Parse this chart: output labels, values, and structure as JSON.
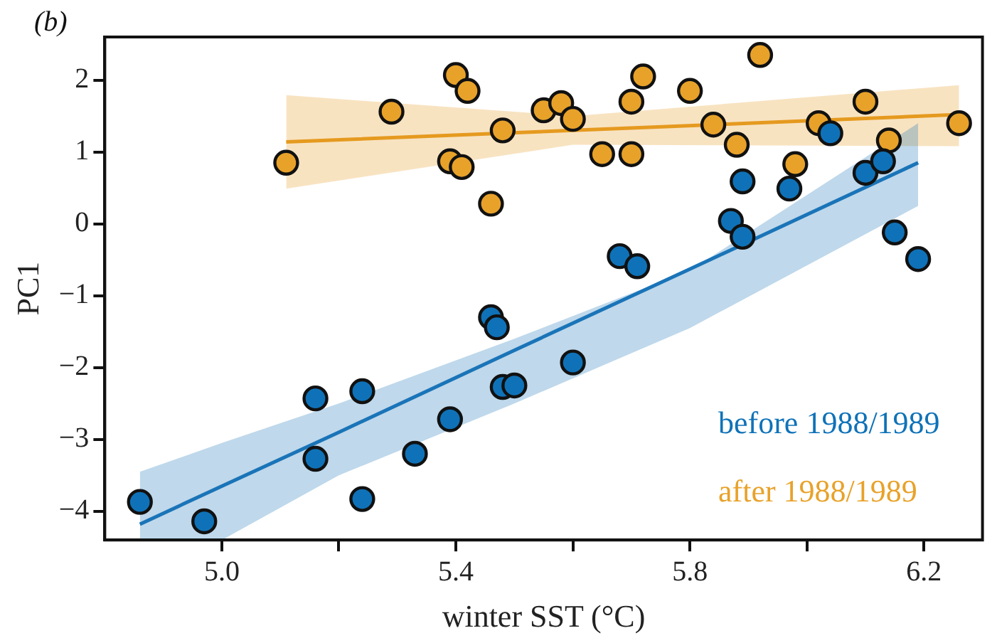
{
  "chart_data": {
    "type": "scatter",
    "title": "(b)",
    "xlabel": "winter SST (°C)",
    "ylabel": "PC1",
    "xlim": [
      4.8,
      6.3
    ],
    "ylim": [
      -4.4,
      2.6
    ],
    "xticks": [
      {
        "value": 5,
        "label": "5.0"
      },
      {
        "value": 5.2,
        "label": null
      },
      {
        "value": 5.4,
        "label": "5.4"
      },
      {
        "value": 5.6,
        "label": null
      },
      {
        "value": 5.8,
        "label": "5.8"
      },
      {
        "value": 6,
        "label": null
      },
      {
        "value": 6.2,
        "label": "6.2"
      }
    ],
    "yticks": [
      -4,
      -3,
      -2,
      -1,
      0,
      1,
      2
    ],
    "grid": false,
    "legend": "bottom right",
    "marker": "circle",
    "series": [
      {
        "name": "before 1988/1989",
        "type": "scatter",
        "color": "#0f72b8",
        "x": [
          4.86,
          4.97,
          5.16,
          5.16,
          5.24,
          5.24,
          5.33,
          5.39,
          5.46,
          5.47,
          5.48,
          5.5,
          5.6,
          5.68,
          5.71,
          5.87,
          5.89,
          5.89,
          5.97,
          6.04,
          6.1,
          6.13,
          6.15,
          6.19
        ],
        "values": [
          -3.87,
          -4.14,
          -2.43,
          -3.27,
          -2.33,
          -3.83,
          -3.2,
          -2.72,
          -1.3,
          -1.44,
          -2.27,
          -2.25,
          -1.93,
          -0.45,
          -0.59,
          0.04,
          -0.18,
          0.59,
          0.49,
          1.26,
          0.71,
          0.87,
          -0.12,
          -0.49
        ]
      },
      {
        "name": "after 1988/1989",
        "type": "scatter",
        "color": "#e8a22a",
        "x": [
          5.11,
          5.29,
          5.4,
          5.42,
          5.39,
          5.41,
          5.46,
          5.48,
          5.55,
          5.58,
          5.6,
          5.65,
          5.7,
          5.72,
          5.7,
          5.8,
          5.84,
          5.88,
          5.92,
          6.02,
          5.98,
          6.1,
          6.14,
          6.26
        ],
        "values": [
          0.85,
          1.56,
          2.07,
          1.85,
          0.87,
          0.79,
          0.28,
          1.3,
          1.58,
          1.68,
          1.46,
          0.97,
          1.7,
          2.05,
          0.97,
          1.85,
          1.38,
          1.1,
          2.35,
          1.4,
          0.83,
          1.7,
          1.16,
          1.4
        ]
      },
      {
        "type": "line",
        "marker": "none",
        "color": "#1a74b8",
        "x": [
          4.86,
          5.0,
          5.2,
          5.5,
          5.8,
          6.19
        ],
        "values": [
          -4.18,
          -3.65,
          -2.9,
          -1.76,
          -0.63,
          0.85
        ],
        "lower": [
          -4.4,
          -4.4,
          -3.5,
          -2.5,
          -1.45,
          0.25
        ],
        "upper": [
          -3.45,
          -3.05,
          -2.5,
          -1.6,
          -0.65,
          1.4
        ]
      },
      {
        "type": "line",
        "marker": "none",
        "color": "#e59a1f",
        "x": [
          5.11,
          5.6,
          6.26
        ],
        "values": [
          1.14,
          1.3,
          1.52
        ],
        "lower": [
          0.49,
          1.1,
          1.08
        ],
        "upper": [
          1.79,
          1.5,
          1.93
        ]
      }
    ]
  }
}
